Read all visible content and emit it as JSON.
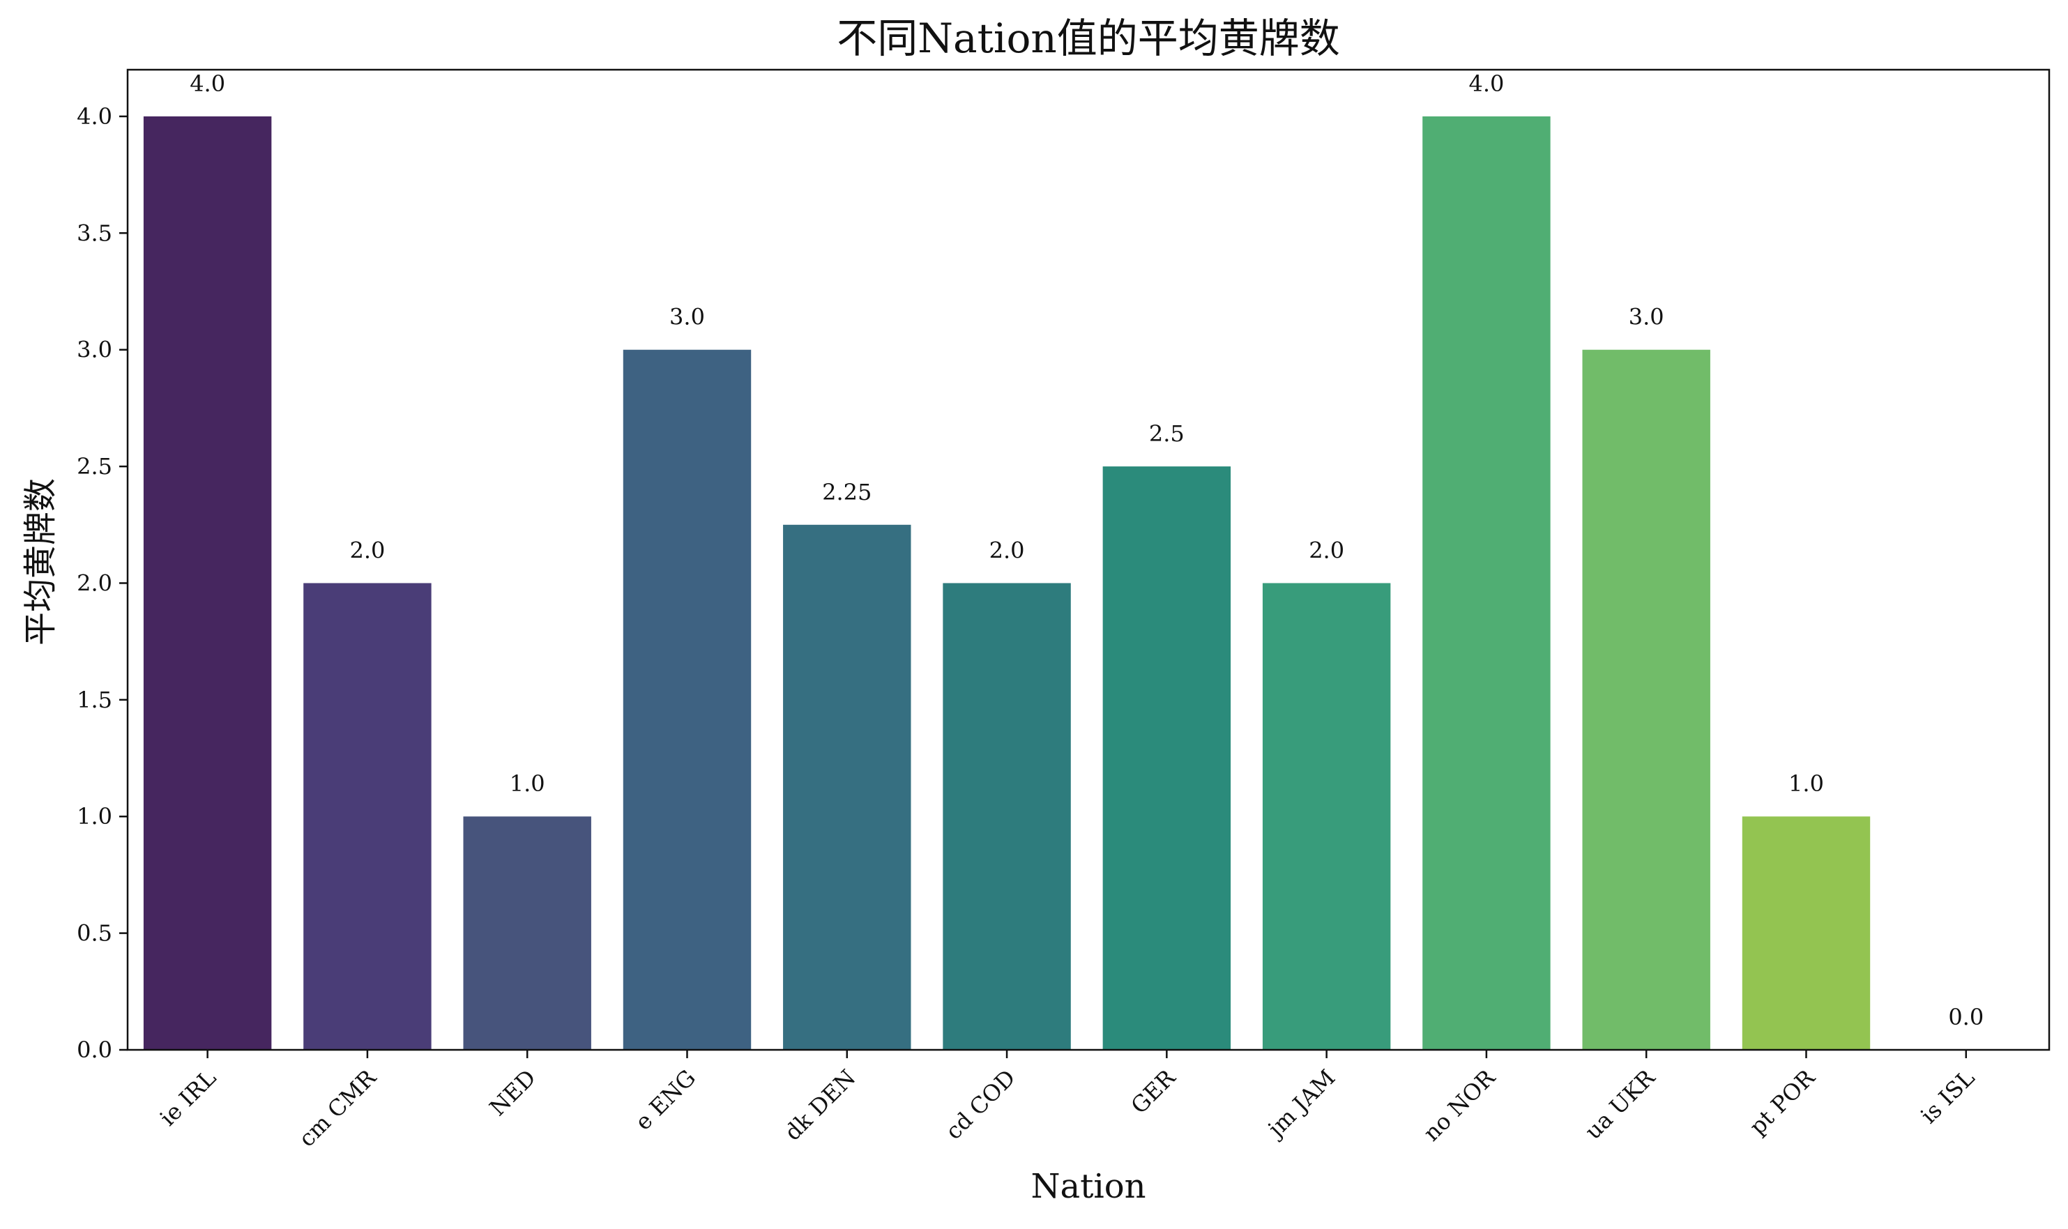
{
  "chart_data": {
    "type": "bar",
    "title": "不同Nation值的平均黄牌数",
    "xlabel": "Nation",
    "ylabel": "平均黄牌数",
    "categories": [
      "ie IRL",
      "cm CMR",
      "NED",
      "e ENG",
      "dk DEN",
      "cd COD",
      "GER",
      "jm JAM",
      "no NOR",
      "ua UKR",
      "pt POR",
      "is ISL"
    ],
    "values": [
      4.0,
      2.0,
      1.0,
      3.0,
      2.25,
      2.0,
      2.5,
      2.0,
      4.0,
      3.0,
      1.0,
      0.0
    ],
    "value_labels": [
      "4.0",
      "2.0",
      "1.0",
      "3.0",
      "2.25",
      "2.0",
      "2.5",
      "2.0",
      "4.0",
      "3.0",
      "1.0",
      "0.0"
    ],
    "bar_colors": [
      "#46265f",
      "#4a3d77",
      "#47547c",
      "#3e6282",
      "#366f81",
      "#2e7c7d",
      "#2b8b7b",
      "#389c7b",
      "#50ae73",
      "#71bc69",
      "#93c451",
      "#b5d33a"
    ],
    "yticks": [
      0.0,
      0.5,
      1.0,
      1.5,
      2.0,
      2.5,
      3.0,
      3.5,
      4.0
    ],
    "ytick_labels": [
      "0.0",
      "0.5",
      "1.0",
      "1.5",
      "2.0",
      "2.5",
      "3.0",
      "3.5",
      "4.0"
    ],
    "ylim": [
      0,
      4.2
    ],
    "grid": false,
    "legend": "none",
    "x_tick_rotation": 45
  }
}
